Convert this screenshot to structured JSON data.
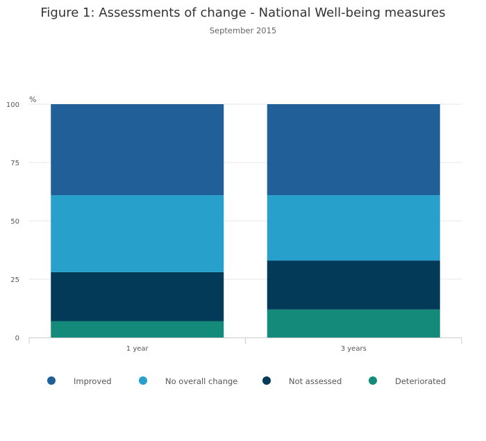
{
  "chart_data": {
    "type": "bar",
    "stacked": true,
    "title": "Figure 1: Assessments of change - National Well-being measures",
    "subtitle": "September 2015",
    "ylabel": "%",
    "xlabel": "",
    "ylim": [
      0,
      100
    ],
    "yticks": [
      0,
      25,
      50,
      75,
      100
    ],
    "categories": [
      "1 year",
      "3 years"
    ],
    "series": [
      {
        "name": "Deteriorated",
        "color": "#138a7a",
        "values": [
          7,
          12
        ]
      },
      {
        "name": "Not assessed",
        "color": "#023a58",
        "values": [
          21,
          21
        ]
      },
      {
        "name": "No overall change",
        "color": "#27a0cc",
        "values": [
          33,
          28
        ]
      },
      {
        "name": "Improved",
        "color": "#215f98",
        "values": [
          39,
          39
        ]
      }
    ],
    "legend": {
      "position": "bottom",
      "order": [
        "Improved",
        "No overall change",
        "Not assessed",
        "Deteriorated"
      ]
    },
    "grid": true
  }
}
